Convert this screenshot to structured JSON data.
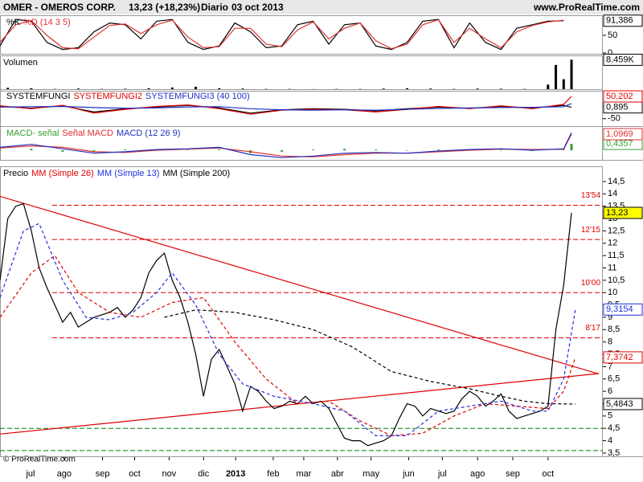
{
  "header": {
    "symbol": "OMER - OMEROS CORP.",
    "change": "13,23 (+18,23%)",
    "period": "Diario",
    "date": "03 oct 2013",
    "site": "www.ProRealTime.com"
  },
  "footer": "© ProRealTime.com",
  "chart_data": [
    {
      "type": "line",
      "xlim": [
        0,
        77
      ],
      "ylim": [
        0,
        100
      ],
      "yticks": [
        0,
        50
      ],
      "series": [
        {
          "name": "%K",
          "color": "#000000",
          "x": [
            0,
            2,
            4,
            6,
            8,
            10,
            12,
            14,
            16,
            18,
            20,
            22,
            24,
            26,
            28,
            30,
            32,
            34,
            36,
            38,
            40,
            42,
            44,
            46,
            48,
            50,
            52,
            54,
            56,
            58,
            60,
            62,
            64,
            66,
            68,
            70,
            72
          ],
          "values": [
            20,
            95,
            90,
            30,
            10,
            15,
            60,
            85,
            80,
            40,
            90,
            95,
            30,
            10,
            20,
            85,
            60,
            15,
            20,
            80,
            90,
            25,
            80,
            85,
            20,
            10,
            30,
            90,
            95,
            15,
            85,
            30,
            10,
            70,
            80,
            90,
            91.386
          ],
          "last_label": "91,386"
        },
        {
          "name": "%D (14 3 5)",
          "color": "#e03030",
          "x": [
            0,
            2,
            4,
            6,
            8,
            10,
            12,
            14,
            16,
            18,
            20,
            22,
            24,
            26,
            28,
            30,
            32,
            34,
            36,
            38,
            40,
            42,
            44,
            46,
            48,
            50,
            52,
            54,
            56,
            58,
            60,
            62,
            64,
            66,
            68,
            70,
            72
          ],
          "values": [
            30,
            80,
            92,
            50,
            15,
            12,
            45,
            78,
            82,
            55,
            80,
            93,
            45,
            15,
            18,
            70,
            70,
            25,
            18,
            65,
            88,
            40,
            70,
            85,
            35,
            12,
            25,
            80,
            94,
            30,
            70,
            40,
            15,
            60,
            78,
            88,
            93
          ]
        }
      ]
    },
    {
      "type": "bar",
      "title": "Volumen",
      "xlim": [
        0,
        77
      ],
      "ylim": [
        0,
        9000
      ],
      "series": [
        {
          "color": "#000000",
          "kind": "bar",
          "x": [
            1,
            4,
            7,
            10,
            13,
            16,
            19,
            22,
            25,
            28,
            31,
            34,
            37,
            40,
            43,
            46,
            49,
            52,
            55,
            58,
            61,
            64,
            67,
            70,
            71,
            72,
            73
          ],
          "values": [
            600,
            500,
            300,
            400,
            300,
            350,
            500,
            700,
            900,
            500,
            400,
            300,
            300,
            250,
            300,
            300,
            400,
            500,
            400,
            300,
            400,
            350,
            300,
            1500,
            7000,
            3000,
            8459
          ],
          "last_label": "8.459K"
        }
      ]
    },
    {
      "type": "line",
      "xlim": [
        0,
        77
      ],
      "ylim": [
        -80,
        72
      ],
      "yticks": [
        -50
      ],
      "series": [
        {
          "name": "SYSTEMFUNGI",
          "color": "#000000",
          "x": [
            0,
            4,
            8,
            12,
            16,
            20,
            24,
            28,
            32,
            36,
            40,
            44,
            48,
            52,
            56,
            60,
            64,
            68,
            72,
            73
          ],
          "values": [
            5,
            -3,
            8,
            -20,
            -5,
            3,
            10,
            -2,
            -25,
            -10,
            -5,
            -8,
            -15,
            -5,
            2,
            -3,
            5,
            -2,
            10,
            0.895
          ],
          "last_label": "0,895"
        },
        {
          "name": "SYSTEMFUNGI2",
          "color": "#e00000",
          "x": [
            0,
            4,
            8,
            12,
            16,
            20,
            24,
            28,
            32,
            36,
            40,
            44,
            48,
            52,
            56,
            60,
            64,
            68,
            72,
            73
          ],
          "values": [
            8,
            -5,
            10,
            -25,
            -8,
            5,
            12,
            -5,
            -30,
            -12,
            -8,
            -10,
            -20,
            -8,
            5,
            -5,
            8,
            -5,
            15,
            50.202
          ],
          "last_label": "50,202"
        },
        {
          "name": "SYSTEMFUNGI3 (40 100)",
          "color": "#2030c0",
          "x": [
            0,
            4,
            8,
            12,
            16,
            20,
            24,
            28,
            32,
            36,
            40,
            44,
            48,
            52,
            56,
            60,
            64,
            68,
            72,
            73
          ],
          "values": [
            2,
            4,
            5,
            0,
            -3,
            -2,
            3,
            4,
            -5,
            -10,
            -12,
            -10,
            -12,
            -8,
            -4,
            -2,
            0,
            1,
            4,
            18
          ]
        }
      ]
    },
    {
      "type": "line",
      "xlim": [
        0,
        77
      ],
      "ylim": [
        -0.6,
        1.48
      ],
      "series": [
        {
          "name": "MACD- señal",
          "color": "#30a030",
          "kind": "bar",
          "x": [
            0,
            4,
            8,
            12,
            16,
            20,
            24,
            28,
            32,
            36,
            40,
            44,
            48,
            52,
            56,
            60,
            64,
            68,
            72,
            73
          ],
          "values": [
            0.05,
            0.1,
            -0.1,
            -0.1,
            0.05,
            0.05,
            0.02,
            0.05,
            -0.2,
            -0.1,
            0.05,
            0.1,
            0.05,
            0,
            0.05,
            0.05,
            0.02,
            -0.05,
            0.04,
            0.4357
          ],
          "last_label": "0,4357"
        },
        {
          "name": "Señal MACD",
          "color": "#e03030",
          "x": [
            0,
            4,
            8,
            12,
            16,
            20,
            24,
            28,
            32,
            36,
            40,
            44,
            48,
            52,
            56,
            60,
            64,
            68,
            72,
            73
          ],
          "values": [
            0.15,
            0.3,
            0.2,
            -0.1,
            -0.15,
            0.0,
            0.08,
            0.15,
            -0.1,
            -0.4,
            -0.45,
            -0.3,
            -0.2,
            -0.2,
            -0.1,
            0.0,
            0.08,
            0.05,
            0.06,
            1.0969
          ],
          "last_label": "1,0969"
        },
        {
          "name": "MACD (12 26 9)",
          "color": "#2030c0",
          "x": [
            0,
            4,
            8,
            12,
            16,
            20,
            24,
            28,
            32,
            36,
            40,
            44,
            48,
            52,
            56,
            60,
            64,
            68,
            72,
            73
          ],
          "values": [
            0.2,
            0.4,
            0.1,
            -0.2,
            -0.1,
            0.05,
            0.1,
            0.2,
            -0.3,
            -0.5,
            -0.4,
            -0.2,
            -0.15,
            -0.2,
            -0.05,
            0.05,
            0.1,
            0.0,
            0.1,
            1.2
          ]
        }
      ]
    },
    {
      "type": "line",
      "title": "Precio",
      "xlim": [
        0,
        77
      ],
      "ylim": [
        3.4,
        15.02
      ],
      "yticks": [
        {
          "value": 3.5,
          "label": "3,5"
        },
        4,
        {
          "value": 4.5,
          "label": "4,5"
        },
        5,
        {
          "value": 5.5,
          "label": "5,5"
        },
        6,
        {
          "value": 6.5,
          "label": "6,5"
        },
        7,
        {
          "value": 7.5,
          "label": "7,5"
        },
        8,
        {
          "value": 8.5,
          "label": "8,5"
        },
        9,
        {
          "value": 9.5,
          "label": "9,5"
        },
        10,
        {
          "value": 10.5,
          "label": "10,5"
        },
        11,
        {
          "value": 11.5,
          "label": "11,5"
        },
        12,
        {
          "value": 12.5,
          "label": "12,5"
        },
        13,
        {
          "value": 13.5,
          "label": "13,5"
        },
        14,
        {
          "value": 14.5,
          "label": "14,5"
        }
      ],
      "xticks": [
        {
          "value": 3.9,
          "label": "jul"
        },
        {
          "value": 8.2,
          "label": "ago"
        },
        {
          "value": 13.1,
          "label": "sep"
        },
        {
          "value": 17.2,
          "label": "oct"
        },
        {
          "value": 21.6,
          "label": "nov"
        },
        {
          "value": 26,
          "label": "dic"
        },
        {
          "value": 30.1,
          "label": "2013"
        },
        {
          "value": 34.9,
          "label": "feb"
        },
        {
          "value": 38.8,
          "label": "mar"
        },
        {
          "value": 43.1,
          "label": "abr"
        },
        {
          "value": 47.4,
          "label": "may"
        },
        {
          "value": 52.2,
          "label": "jun"
        },
        {
          "value": 56.5,
          "label": "jul"
        },
        {
          "value": 61,
          "label": "ago"
        },
        {
          "value": 65.5,
          "label": "sep"
        },
        {
          "value": 70,
          "label": "oct"
        }
      ],
      "series": [
        {
          "color": "#000000",
          "values": [
            10.5,
            13.0,
            13.5,
            13.6,
            12.5,
            11.0,
            10.2,
            9.5,
            8.8,
            9.2,
            8.6,
            8.8,
            9.0,
            9.1,
            9.2,
            9.4,
            9.0,
            9.3,
            9.8,
            10.8,
            11.3,
            11.6,
            10.5,
            9.8,
            8.8,
            7.5,
            5.8,
            7.3,
            7.7,
            7.0,
            6.3,
            5.2,
            6.2,
            6.0,
            5.6,
            5.3,
            5.4,
            5.6,
            5.5,
            5.8,
            5.5,
            5.6,
            5.3,
            4.7,
            4.1,
            4.0,
            4.0,
            3.8,
            3.9,
            4.0,
            4.2,
            4.9,
            5.5,
            5.4,
            5.0,
            5.3,
            5.2,
            5.1,
            5.2,
            5.7,
            6.0,
            5.8,
            5.4,
            5.6,
            5.9,
            5.2,
            4.9,
            5.0,
            5.1,
            5.2,
            5.4,
            8.5,
            10.3,
            13.23
          ],
          "last_label": "13,23",
          "label_fill": "#ffff00"
        },
        {
          "name": "MM (Simple 26)",
          "color": "#e00000",
          "dash": true,
          "x": [
            0,
            4,
            7,
            10,
            14,
            18,
            22,
            26,
            30,
            34,
            38,
            42,
            46,
            50,
            54,
            58,
            62,
            66,
            70,
            72,
            73.5
          ],
          "values": [
            9.0,
            10.8,
            11.5,
            10.0,
            9.2,
            9.0,
            9.6,
            9.8,
            8.0,
            6.5,
            5.5,
            5.6,
            4.8,
            4.2,
            4.3,
            5.0,
            5.5,
            5.4,
            5.3,
            6.0,
            7.3742
          ],
          "last_label": "7,3742"
        },
        {
          "name": "MM (Simple 13)",
          "color": "#2030e0",
          "dash": true,
          "x": [
            0,
            3,
            5,
            8,
            11,
            14,
            17,
            20,
            22,
            25,
            28,
            31,
            35,
            40,
            44,
            48,
            52,
            56,
            60,
            64,
            68,
            70,
            72,
            73.5
          ],
          "values": [
            9.8,
            12.5,
            12.8,
            10.5,
            9.0,
            8.9,
            9.2,
            10.0,
            10.8,
            9.5,
            7.5,
            6.3,
            5.8,
            5.5,
            5.2,
            4.2,
            4.2,
            5.2,
            5.4,
            5.6,
            5.2,
            5.2,
            6.5,
            9.3154
          ],
          "last_label": "9,3154"
        },
        {
          "name": "MM (Simple 200)",
          "color": "#000000",
          "dash": true,
          "x": [
            21,
            25,
            30,
            35,
            40,
            45,
            50,
            55,
            60,
            64,
            67,
            70,
            73.5
          ],
          "values": [
            9.0,
            9.3,
            9.2,
            8.9,
            8.5,
            7.8,
            6.8,
            6.4,
            6.1,
            5.8,
            5.6,
            5.5,
            5.4843
          ],
          "last_label": "5,4843"
        }
      ],
      "trendlines": [
        {
          "color": "#e00000",
          "x": [
            0,
            76.5
          ],
          "values": [
            13.9,
            6.7
          ]
        },
        {
          "color": "#e00000",
          "x": [
            0,
            76.5
          ],
          "values": [
            4.27,
            6.72
          ]
        }
      ],
      "levels": [
        {
          "value": 13.54,
          "label": "13'54",
          "color": "#e00000"
        },
        {
          "value": 12.15,
          "label": "12'15",
          "color": "#e00000"
        },
        {
          "value": 10.0,
          "label": "10'00",
          "color": "#e00000"
        },
        {
          "value": 8.17,
          "label": "8'17",
          "color": "#e00000"
        },
        {
          "value": 4.5,
          "color": "#008000"
        },
        {
          "value": 3.6,
          "color": "#008000"
        }
      ]
    }
  ]
}
